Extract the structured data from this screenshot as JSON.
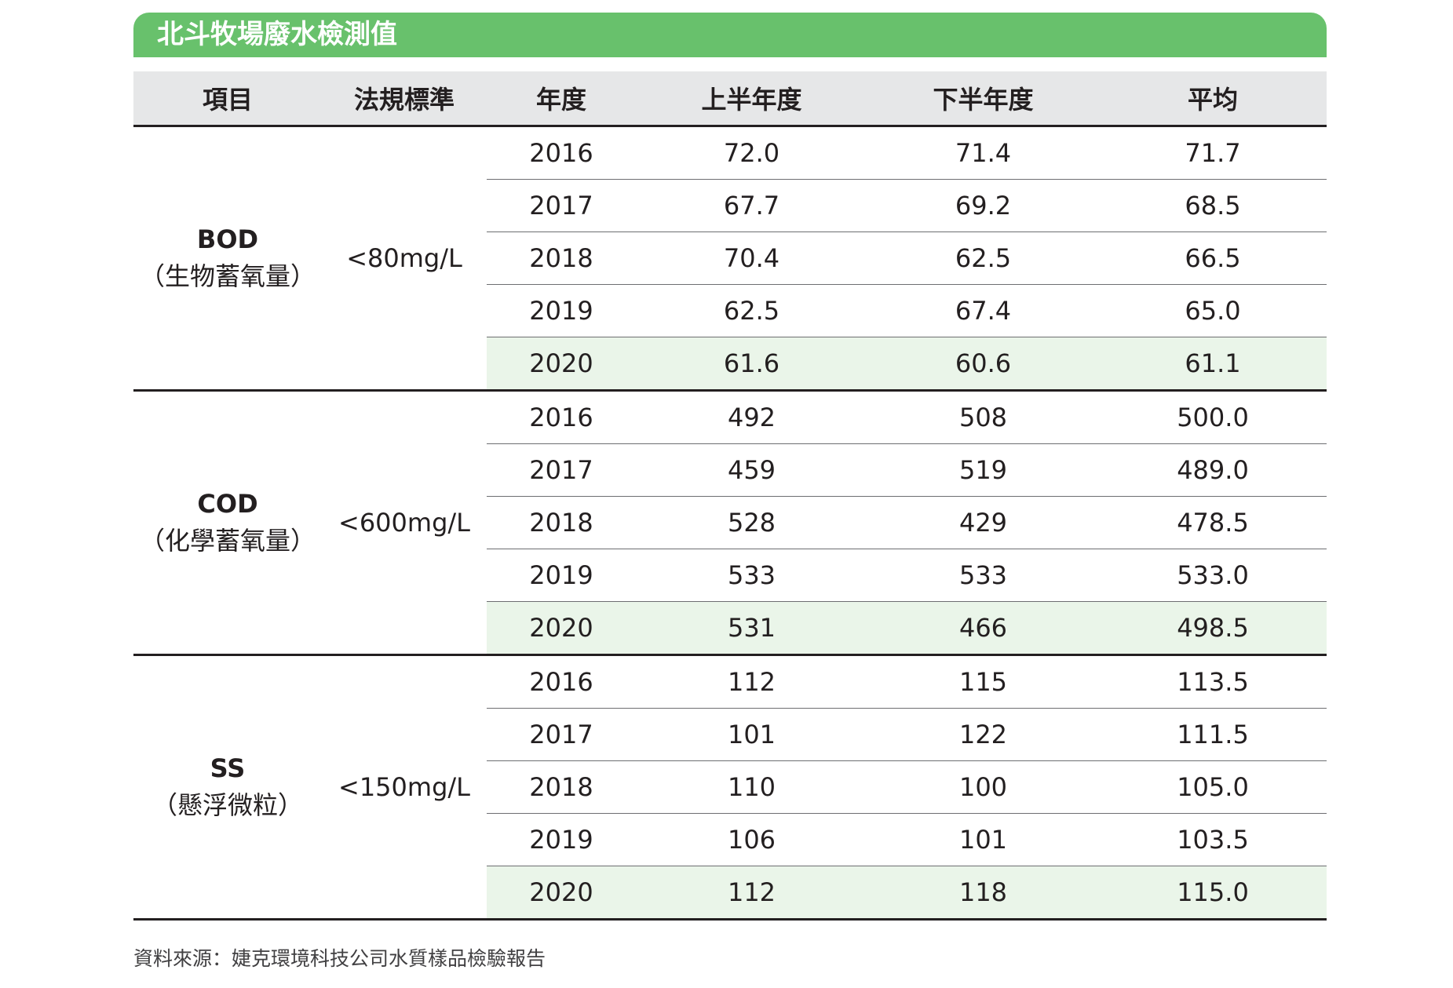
{
  "title": "北斗牧場廢水檢測值",
  "headers": {
    "item": "項目",
    "standard": "法規標準",
    "year": "年度",
    "first_half": "上半年度",
    "second_half": "下半年度",
    "average": "平均"
  },
  "groups": [
    {
      "code": "BOD",
      "desc": "（生物蓄氧量）",
      "standard": "<80mg/L",
      "rows": [
        {
          "year": "2016",
          "first_half": "72.0",
          "second_half": "71.4",
          "average": "71.7"
        },
        {
          "year": "2017",
          "first_half": "67.7",
          "second_half": "69.2",
          "average": "68.5"
        },
        {
          "year": "2018",
          "first_half": "70.4",
          "second_half": "62.5",
          "average": "66.5"
        },
        {
          "year": "2019",
          "first_half": "62.5",
          "second_half": "67.4",
          "average": "65.0"
        },
        {
          "year": "2020",
          "first_half": "61.6",
          "second_half": "60.6",
          "average": "61.1"
        }
      ]
    },
    {
      "code": "COD",
      "desc": "（化學蓄氧量）",
      "standard": "<600mg/L",
      "rows": [
        {
          "year": "2016",
          "first_half": "492",
          "second_half": "508",
          "average": "500.0"
        },
        {
          "year": "2017",
          "first_half": "459",
          "second_half": "519",
          "average": "489.0"
        },
        {
          "year": "2018",
          "first_half": "528",
          "second_half": "429",
          "average": "478.5"
        },
        {
          "year": "2019",
          "first_half": "533",
          "second_half": "533",
          "average": "533.0"
        },
        {
          "year": "2020",
          "first_half": "531",
          "second_half": "466",
          "average": "498.5"
        }
      ]
    },
    {
      "code": "SS",
      "desc": "（懸浮微粒）",
      "standard": "<150mg/L",
      "rows": [
        {
          "year": "2016",
          "first_half": "112",
          "second_half": "115",
          "average": "113.5"
        },
        {
          "year": "2017",
          "first_half": "101",
          "second_half": "122",
          "average": "111.5"
        },
        {
          "year": "2018",
          "first_half": "110",
          "second_half": "100",
          "average": "105.0"
        },
        {
          "year": "2019",
          "first_half": "106",
          "second_half": "101",
          "average": "103.5"
        },
        {
          "year": "2020",
          "first_half": "112",
          "second_half": "118",
          "average": "115.0"
        }
      ]
    }
  ],
  "source": "資料來源：婕克環境科技公司水質樣品檢驗報告",
  "colors": {
    "title_bar": "#68c16c",
    "header_bg": "#e6e7e8",
    "highlight_row": "#eaf5e9"
  }
}
